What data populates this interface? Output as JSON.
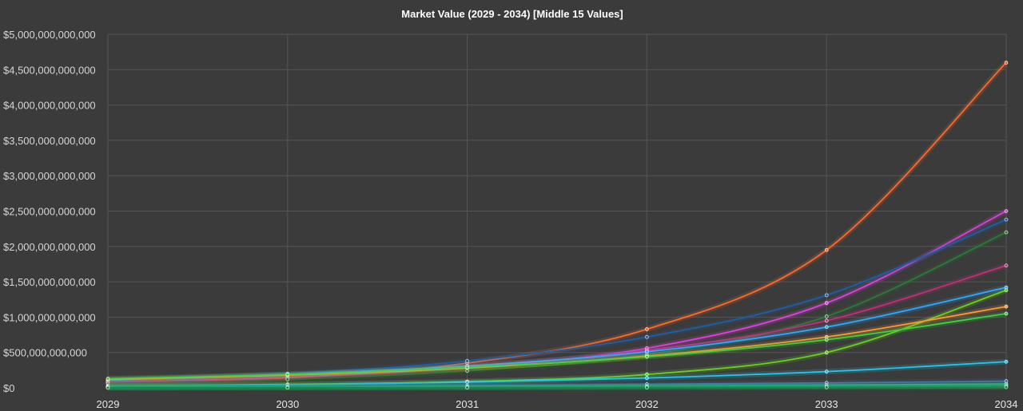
{
  "chart_data": {
    "type": "line",
    "title": "Market Value (2029 - 2034) [Middle 15 Values]",
    "xlabel": "",
    "ylabel": "",
    "x": [
      "2029",
      "2030",
      "2031",
      "2032",
      "2033",
      "2034"
    ],
    "ylim": [
      0,
      5000000000000
    ],
    "yticks": [
      0,
      500000000000,
      1000000000000,
      1500000000000,
      2000000000000,
      2500000000000,
      3000000000000,
      3500000000000,
      4000000000000,
      4500000000000,
      5000000000000
    ],
    "ytick_labels": [
      "$0",
      "$500,000,000,000",
      "$1,000,000,000,000",
      "$1,500,000,000,000",
      "$2,000,000,000,000",
      "$2,500,000,000,000",
      "$3,000,000,000,000",
      "$3,500,000,000,000",
      "$4,000,000,000,000",
      "$4,500,000,000,000",
      "$5,000,000,000,000"
    ],
    "grid": true,
    "legend": "none",
    "series": [
      {
        "color": "#ff6a2b",
        "values": [
          70000000000,
          140000000000,
          350000000000,
          830000000000,
          1950000000000,
          4600000000000
        ]
      },
      {
        "color": "#e040e0",
        "values": [
          80000000000,
          150000000000,
          290000000000,
          560000000000,
          1200000000000,
          2500000000000
        ]
      },
      {
        "color": "#1f5f9f",
        "values": [
          100000000000,
          200000000000,
          380000000000,
          720000000000,
          1310000000000,
          2380000000000
        ]
      },
      {
        "color": "#2a7a3a",
        "values": [
          60000000000,
          120000000000,
          240000000000,
          470000000000,
          1010000000000,
          2200000000000
        ]
      },
      {
        "color": "#c0307a",
        "values": [
          90000000000,
          170000000000,
          300000000000,
          530000000000,
          950000000000,
          1730000000000
        ]
      },
      {
        "color": "#2ea8ff",
        "values": [
          110000000000,
          190000000000,
          310000000000,
          510000000000,
          860000000000,
          1420000000000
        ]
      },
      {
        "color": "#6ad11f",
        "values": [
          30000000000,
          50000000000,
          90000000000,
          190000000000,
          500000000000,
          1380000000000
        ]
      },
      {
        "color": "#ff9a30",
        "values": [
          120000000000,
          180000000000,
          280000000000,
          450000000000,
          720000000000,
          1150000000000
        ]
      },
      {
        "color": "#3fd23f",
        "values": [
          130000000000,
          190000000000,
          290000000000,
          440000000000,
          680000000000,
          1050000000000
        ]
      },
      {
        "color": "#22c8ee",
        "values": [
          20000000000,
          40000000000,
          80000000000,
          140000000000,
          230000000000,
          370000000000
        ]
      },
      {
        "color": "#3b6fb0",
        "values": [
          15000000000,
          22000000000,
          33000000000,
          50000000000,
          70000000000,
          95000000000
        ]
      },
      {
        "color": "#35c090",
        "values": [
          10000000000,
          14000000000,
          20000000000,
          28000000000,
          40000000000,
          55000000000
        ]
      },
      {
        "color": "#2f9a60",
        "values": [
          6000000000,
          9000000000,
          13000000000,
          18000000000,
          25000000000,
          35000000000
        ]
      },
      {
        "color": "#1fa8a0",
        "values": [
          3000000000,
          5000000000,
          7000000000,
          10000000000,
          14000000000,
          20000000000
        ]
      },
      {
        "color": "#1a8a3a",
        "values": [
          1000000000,
          2000000000,
          3000000000,
          5000000000,
          7000000000,
          10000000000
        ]
      }
    ]
  }
}
